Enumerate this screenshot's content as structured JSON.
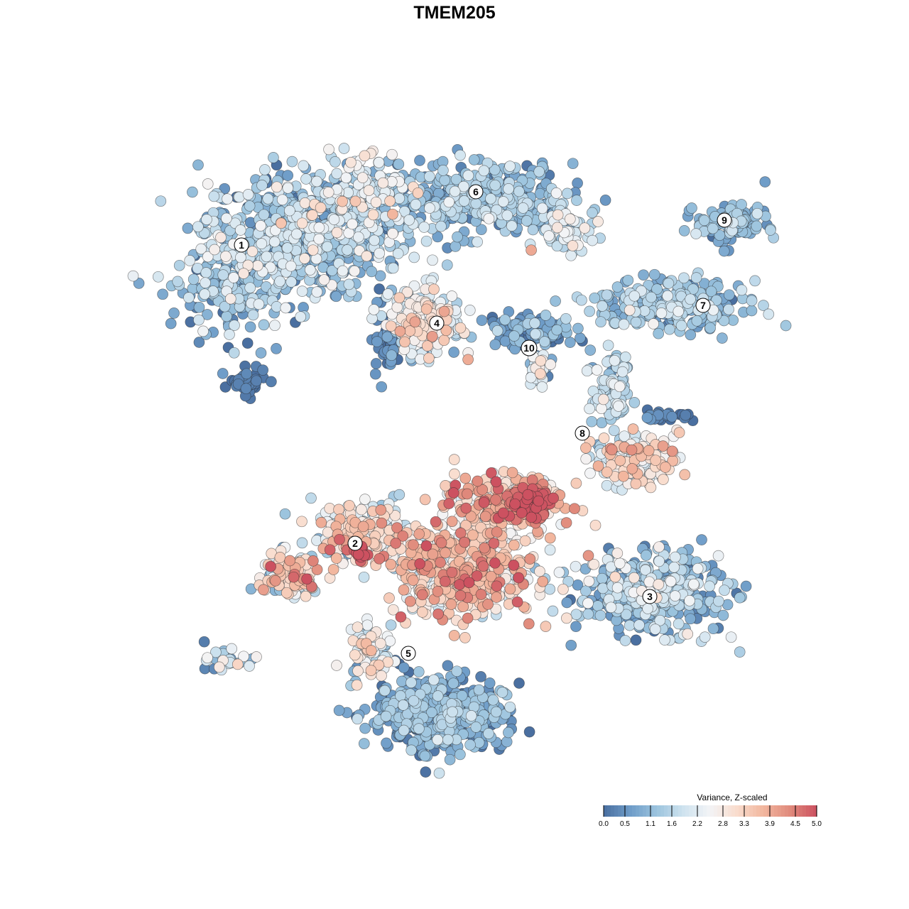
{
  "chart_data": {
    "type": "scatter",
    "title": "TMEM205",
    "xlabel": "",
    "ylabel": "",
    "grid": false,
    "legend": {
      "title": "Variance, Z-scaled",
      "placement": "bottom-right",
      "range": [
        0.0,
        5.0
      ],
      "ticks": [
        "0.0",
        "0.5",
        "1.1",
        "1.6",
        "2.2",
        "2.8",
        "3.3",
        "3.9",
        "4.5",
        "5.0"
      ],
      "colors": [
        "#4a6fa0",
        "#6e9cc8",
        "#9cc4de",
        "#cfe3ef",
        "#f3f4f6",
        "#f9dccd",
        "#f2b69e",
        "#e08a7c",
        "#cc5160"
      ]
    },
    "clusters": [
      {
        "label": "1",
        "x": -6.0,
        "y": 5.8,
        "value": 1.3
      },
      {
        "label": "2",
        "x": -2.8,
        "y": -2.6,
        "value": 3.0
      },
      {
        "label": "3",
        "x": 5.5,
        "y": -4.1,
        "value": 1.2
      },
      {
        "label": "4",
        "x": -0.5,
        "y": 3.6,
        "value": 2.5
      },
      {
        "label": "5",
        "x": -1.3,
        "y": -5.7,
        "value": 0.8
      },
      {
        "label": "6",
        "x": 0.6,
        "y": 7.3,
        "value": 1.0
      },
      {
        "label": "7",
        "x": 7.0,
        "y": 4.1,
        "value": 1.1
      },
      {
        "label": "8",
        "x": 3.6,
        "y": 0.5,
        "value": 2.2
      },
      {
        "label": "9",
        "x": 7.6,
        "y": 6.5,
        "value": 1.0
      },
      {
        "label": "10",
        "x": 2.1,
        "y": 2.9,
        "value": 1.6
      }
    ]
  }
}
